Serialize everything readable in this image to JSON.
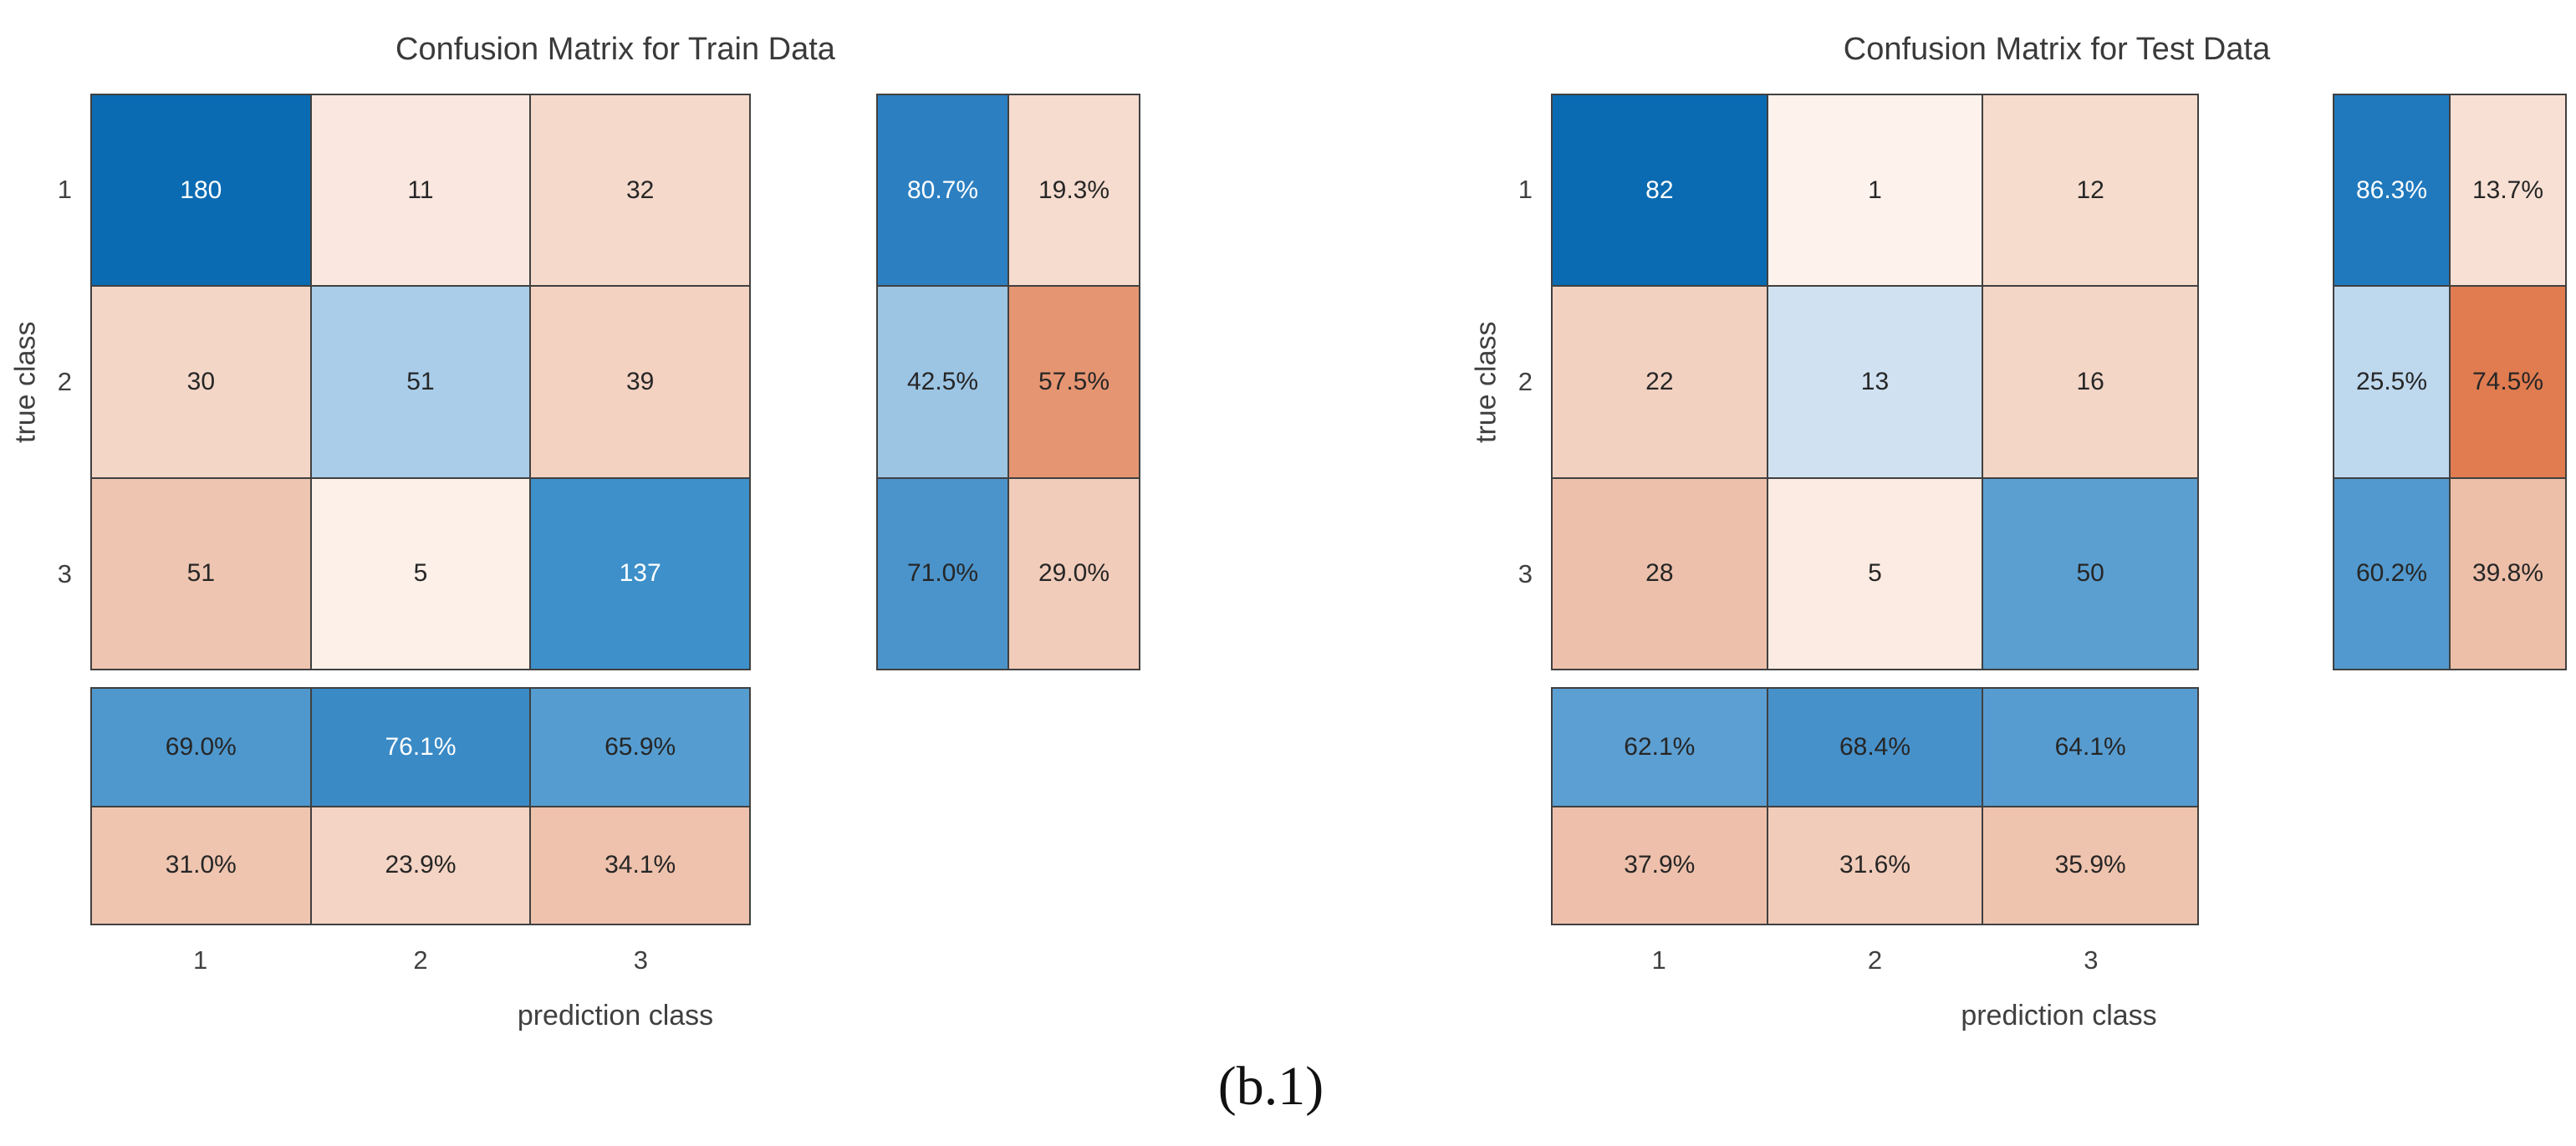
{
  "figure": {
    "caption": "(b.1)"
  },
  "train": {
    "title": "Confusion Matrix for Train Data",
    "ylabel": "true class",
    "xlabel": "prediction class",
    "yticks": {
      "rows": 3,
      "cols": 1,
      "cell_name": "y-tick-label",
      "cells": [
        {
          "text": "1"
        },
        {
          "text": "2"
        },
        {
          "text": "3"
        }
      ]
    },
    "xticks": {
      "rows": 1,
      "cols": 3,
      "cell_name": "x-tick-label",
      "cells": [
        {
          "text": "1"
        },
        {
          "text": "2"
        },
        {
          "text": "3"
        }
      ]
    },
    "matrix": {
      "rows": 3,
      "cols": 3,
      "cell_name": "matrix-cell",
      "cells": [
        {
          "text": "180",
          "bg": "#0a6bb2",
          "fg": "#ffffff"
        },
        {
          "text": "11",
          "bg": "#fae8e0",
          "fg": "#262626"
        },
        {
          "text": "32",
          "bg": "#f5d9ca",
          "fg": "#262626"
        },
        {
          "text": "30",
          "bg": "#f4d6c7",
          "fg": "#262626"
        },
        {
          "text": "51",
          "bg": "#aacde9",
          "fg": "#262626"
        },
        {
          "text": "39",
          "bg": "#f3d2c2",
          "fg": "#262626"
        },
        {
          "text": "51",
          "bg": "#eec5b1",
          "fg": "#262626"
        },
        {
          "text": "5",
          "bg": "#fcf0e9",
          "fg": "#262626"
        },
        {
          "text": "137",
          "bg": "#3d90ca",
          "fg": "#ffffff"
        }
      ]
    },
    "row_summary": {
      "rows": 3,
      "cols": 2,
      "cell_name": "row-summary-cell",
      "cells": [
        {
          "text": "80.7%",
          "bg": "#2c80c2",
          "fg": "#ffffff"
        },
        {
          "text": "19.3%",
          "bg": "#f6dccf",
          "fg": "#262626"
        },
        {
          "text": "42.5%",
          "bg": "#9cc5e4",
          "fg": "#262626"
        },
        {
          "text": "57.5%",
          "bg": "#e69572",
          "fg": "#262626"
        },
        {
          "text": "71.0%",
          "bg": "#4b94cb",
          "fg": "#262626"
        },
        {
          "text": "29.0%",
          "bg": "#f1ccba",
          "fg": "#262626"
        }
      ]
    },
    "col_summary": {
      "rows": 2,
      "cols": 3,
      "cell_name": "column-summary-cell",
      "cells": [
        {
          "text": "69.0%",
          "bg": "#4e98ce",
          "fg": "#262626"
        },
        {
          "text": "76.1%",
          "bg": "#3a8ac6",
          "fg": "#ffffff"
        },
        {
          "text": "65.9%",
          "bg": "#559dd1",
          "fg": "#262626"
        },
        {
          "text": "31.0%",
          "bg": "#efc5b0",
          "fg": "#262626"
        },
        {
          "text": "23.9%",
          "bg": "#f4d4c4",
          "fg": "#262626"
        },
        {
          "text": "34.1%",
          "bg": "#eec2ac",
          "fg": "#262626"
        }
      ]
    }
  },
  "test": {
    "title": "Confusion Matrix for Test Data",
    "ylabel": "true class",
    "xlabel": "prediction class",
    "yticks": {
      "rows": 3,
      "cols": 1,
      "cell_name": "y-tick-label",
      "cells": [
        {
          "text": "1"
        },
        {
          "text": "2"
        },
        {
          "text": "3"
        }
      ]
    },
    "xticks": {
      "rows": 1,
      "cols": 3,
      "cell_name": "x-tick-label",
      "cells": [
        {
          "text": "1"
        },
        {
          "text": "2"
        },
        {
          "text": "3"
        }
      ]
    },
    "matrix": {
      "rows": 3,
      "cols": 3,
      "cell_name": "matrix-cell",
      "cells": [
        {
          "text": "82",
          "bg": "#0a6bb2",
          "fg": "#ffffff"
        },
        {
          "text": "1",
          "bg": "#fdf2ec",
          "fg": "#262626"
        },
        {
          "text": "12",
          "bg": "#f6dccd",
          "fg": "#262626"
        },
        {
          "text": "22",
          "bg": "#f2d1c1",
          "fg": "#262626"
        },
        {
          "text": "13",
          "bg": "#d0e2f1",
          "fg": "#262626"
        },
        {
          "text": "16",
          "bg": "#f4d6c7",
          "fg": "#262626"
        },
        {
          "text": "28",
          "bg": "#edc0ab",
          "fg": "#262626"
        },
        {
          "text": "5",
          "bg": "#fbebe2",
          "fg": "#262626"
        },
        {
          "text": "50",
          "bg": "#5b9fd1",
          "fg": "#262626"
        }
      ]
    },
    "row_summary": {
      "rows": 3,
      "cols": 2,
      "cell_name": "row-summary-cell",
      "cells": [
        {
          "text": "86.3%",
          "bg": "#2079bd",
          "fg": "#ffffff"
        },
        {
          "text": "13.7%",
          "bg": "#f8e0d4",
          "fg": "#262626"
        },
        {
          "text": "25.5%",
          "bg": "#bed8ee",
          "fg": "#262626"
        },
        {
          "text": "74.5%",
          "bg": "#e07c50",
          "fg": "#262626"
        },
        {
          "text": "60.2%",
          "bg": "#5199ce",
          "fg": "#262626"
        },
        {
          "text": "39.8%",
          "bg": "#edbfa9",
          "fg": "#262626"
        }
      ]
    },
    "col_summary": {
      "rows": 2,
      "cols": 3,
      "cell_name": "column-summary-cell",
      "cells": [
        {
          "text": "62.1%",
          "bg": "#5c9fd2",
          "fg": "#262626"
        },
        {
          "text": "68.4%",
          "bg": "#4791ca",
          "fg": "#262626"
        },
        {
          "text": "64.1%",
          "bg": "#579cd0",
          "fg": "#262626"
        },
        {
          "text": "37.9%",
          "bg": "#eec0ab",
          "fg": "#262626"
        },
        {
          "text": "31.6%",
          "bg": "#f2ccba",
          "fg": "#262626"
        },
        {
          "text": "35.9%",
          "bg": "#efc4ae",
          "fg": "#262626"
        }
      ]
    }
  },
  "colors": {
    "diagonal_blue": "#0a6bb2",
    "off_diagonal_orange": "#e07c50",
    "grid_line": "#404040",
    "text_dark": "#262626",
    "text_light": "#ffffff"
  },
  "chart_data": [
    {
      "type": "heatmap",
      "title": "Confusion Matrix for Train Data",
      "xlabel": "prediction class",
      "ylabel": "true class",
      "classes": [
        "1",
        "2",
        "3"
      ],
      "matrix_counts": [
        [
          180,
          11,
          32
        ],
        [
          30,
          51,
          39
        ],
        [
          51,
          5,
          137
        ]
      ],
      "row_summary_pct": [
        [
          80.7,
          19.3
        ],
        [
          42.5,
          57.5
        ],
        [
          71.0,
          29.0
        ]
      ],
      "col_summary_pct": [
        [
          69.0,
          76.1,
          65.9
        ],
        [
          31.0,
          23.9,
          34.1
        ]
      ],
      "legend_position": "none",
      "grid": true
    },
    {
      "type": "heatmap",
      "title": "Confusion Matrix for Test Data",
      "xlabel": "prediction class",
      "ylabel": "true class",
      "classes": [
        "1",
        "2",
        "3"
      ],
      "matrix_counts": [
        [
          82,
          1,
          12
        ],
        [
          22,
          13,
          16
        ],
        [
          28,
          5,
          50
        ]
      ],
      "row_summary_pct": [
        [
          86.3,
          13.7
        ],
        [
          25.5,
          74.5
        ],
        [
          60.2,
          39.8
        ]
      ],
      "col_summary_pct": [
        [
          62.1,
          68.4,
          64.1
        ],
        [
          37.9,
          31.6,
          35.9
        ]
      ],
      "legend_position": "none",
      "grid": true
    }
  ]
}
